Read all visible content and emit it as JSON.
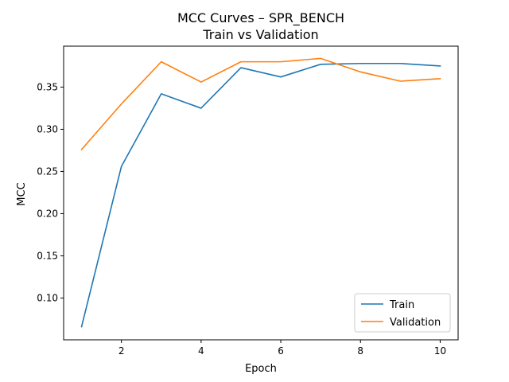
{
  "chart_data": {
    "type": "line",
    "title": "MCC Curves – SPR_BENCH",
    "subtitle": "Train vs Validation",
    "xlabel": "Epoch",
    "ylabel": "MCC",
    "x": [
      1,
      2,
      3,
      4,
      5,
      6,
      7,
      8,
      9,
      10
    ],
    "xlim": [
      0.55,
      10.45
    ],
    "ylim": [
      0.0505,
      0.3985
    ],
    "xticks": [
      2,
      4,
      6,
      8,
      10
    ],
    "yticks": [
      0.1,
      0.15,
      0.2,
      0.25,
      0.3,
      0.35
    ],
    "grid": false,
    "legend_position": "lower-right",
    "series": [
      {
        "name": "Train",
        "color": "#1f77b4",
        "values": [
          0.066,
          0.256,
          0.342,
          0.325,
          0.373,
          0.362,
          0.377,
          0.378,
          0.378,
          0.375
        ]
      },
      {
        "name": "Validation",
        "color": "#ff7f0e",
        "values": [
          0.276,
          0.33,
          0.38,
          0.356,
          0.38,
          0.38,
          0.384,
          0.368,
          0.357,
          0.36
        ]
      }
    ]
  }
}
